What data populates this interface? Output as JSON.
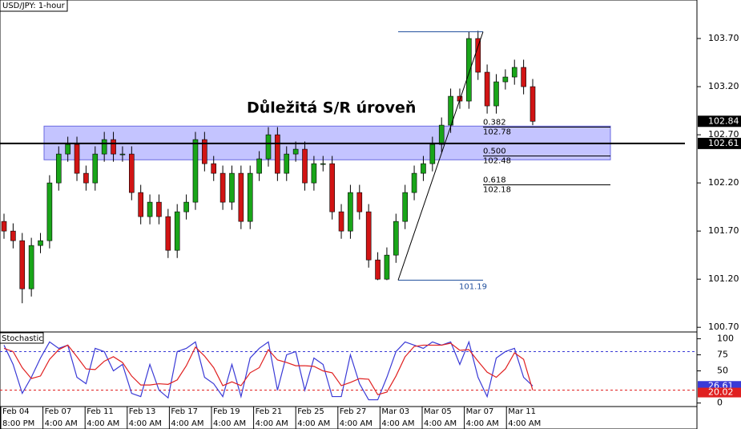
{
  "chart_data": [
    {
      "type": "candlestick",
      "title": "USD/JPY: 1-hour",
      "annotation": "Důležitá S/R úroveň",
      "up_color": "#19a519",
      "down_color": "#d11414",
      "ohlc": [
        [
          101.8,
          101.88,
          101.62,
          101.7
        ],
        [
          101.7,
          101.78,
          101.52,
          101.6
        ],
        [
          101.6,
          101.68,
          100.95,
          101.1
        ],
        [
          101.1,
          101.63,
          101.02,
          101.55
        ],
        [
          101.55,
          101.68,
          101.47,
          101.6
        ],
        [
          101.6,
          102.28,
          101.52,
          102.2
        ],
        [
          102.2,
          102.58,
          102.12,
          102.5
        ],
        [
          102.5,
          102.68,
          102.42,
          102.6
        ],
        [
          102.6,
          102.68,
          102.22,
          102.3
        ],
        [
          102.3,
          102.38,
          102.12,
          102.2
        ],
        [
          102.2,
          102.58,
          102.12,
          102.5
        ],
        [
          102.5,
          102.73,
          102.42,
          102.65
        ],
        [
          102.65,
          102.73,
          102.42,
          102.5
        ],
        [
          102.5,
          102.58,
          102.42,
          102.5
        ],
        [
          102.5,
          102.58,
          102.02,
          102.1
        ],
        [
          102.1,
          102.18,
          101.77,
          101.85
        ],
        [
          101.85,
          102.08,
          101.77,
          102.0
        ],
        [
          102.0,
          102.08,
          101.77,
          101.85
        ],
        [
          101.85,
          101.93,
          101.42,
          101.5
        ],
        [
          101.5,
          101.98,
          101.42,
          101.9
        ],
        [
          101.9,
          102.08,
          101.82,
          102.0
        ],
        [
          102.0,
          102.73,
          101.92,
          102.65
        ],
        [
          102.65,
          102.73,
          102.32,
          102.4
        ],
        [
          102.4,
          102.48,
          102.22,
          102.3
        ],
        [
          102.3,
          102.38,
          101.92,
          102.0
        ],
        [
          102.0,
          102.38,
          101.92,
          102.3
        ],
        [
          102.3,
          102.38,
          101.72,
          101.8
        ],
        [
          101.8,
          102.38,
          101.72,
          102.3
        ],
        [
          102.3,
          102.53,
          102.22,
          102.45
        ],
        [
          102.45,
          102.78,
          102.37,
          102.7
        ],
        [
          102.7,
          102.78,
          102.22,
          102.3
        ],
        [
          102.3,
          102.58,
          102.22,
          102.5
        ],
        [
          102.5,
          102.63,
          102.42,
          102.55
        ],
        [
          102.55,
          102.63,
          102.12,
          102.2
        ],
        [
          102.2,
          102.48,
          102.12,
          102.4
        ],
        [
          102.4,
          102.48,
          102.32,
          102.4
        ],
        [
          102.4,
          102.48,
          101.82,
          101.9
        ],
        [
          101.9,
          101.98,
          101.62,
          101.7
        ],
        [
          101.7,
          102.18,
          101.62,
          102.1
        ],
        [
          102.1,
          102.18,
          101.82,
          101.9
        ],
        [
          101.9,
          101.98,
          101.32,
          101.4
        ],
        [
          101.4,
          101.48,
          101.19,
          101.2
        ],
        [
          101.2,
          101.53,
          101.19,
          101.45
        ],
        [
          101.45,
          101.88,
          101.37,
          101.8
        ],
        [
          101.8,
          102.18,
          101.72,
          102.1
        ],
        [
          102.1,
          102.38,
          102.02,
          102.3
        ],
        [
          102.3,
          102.48,
          102.22,
          102.4
        ],
        [
          102.4,
          102.68,
          102.32,
          102.6
        ],
        [
          102.6,
          102.88,
          102.52,
          102.8
        ],
        [
          102.8,
          103.18,
          102.72,
          103.1
        ],
        [
          103.1,
          103.18,
          102.97,
          103.05
        ],
        [
          103.05,
          103.77,
          102.97,
          103.7
        ],
        [
          103.7,
          103.78,
          103.27,
          103.35
        ],
        [
          103.35,
          103.43,
          102.92,
          103.0
        ],
        [
          103.0,
          103.33,
          102.92,
          103.25
        ],
        [
          103.25,
          103.38,
          103.17,
          103.3
        ],
        [
          103.3,
          103.48,
          103.22,
          103.4
        ],
        [
          103.4,
          103.48,
          103.12,
          103.2
        ],
        [
          103.2,
          103.28,
          102.8,
          102.84
        ]
      ],
      "ylim": [
        100.66,
        104.1
      ],
      "yticks": [
        {
          "value": 103.7,
          "label": "103.70"
        },
        {
          "value": 103.2,
          "label": "103.20"
        },
        {
          "value": 102.7,
          "label": "102.70"
        },
        {
          "value": 102.2,
          "label": "102.20"
        },
        {
          "value": 101.7,
          "label": "101.70"
        },
        {
          "value": 101.2,
          "label": "101.20"
        },
        {
          "value": 100.7,
          "label": "100.70"
        }
      ],
      "last_price": 102.84,
      "line_price": 102.61,
      "zone": [
        102.44,
        102.79
      ],
      "zone_color": "#9c9cff",
      "fib": {
        "high": 103.77,
        "low": 101.19,
        "color": "#1f4e9c",
        "levels": [
          {
            "ratio": "0.382",
            "price": 102.78
          },
          {
            "ratio": "0.500",
            "price": 102.48
          },
          {
            "ratio": "0.618",
            "price": 102.18
          }
        ]
      },
      "x_labels": {
        "dates": [
          "Feb 04",
          "Feb 07",
          "Feb 11",
          "Feb 13",
          "Feb 17",
          "Feb 19",
          "Feb 21",
          "Feb 25",
          "Feb 27",
          "Mar 03",
          "Mar 05",
          "Mar 07",
          "Mar 11"
        ],
        "times": [
          "8:00 PM",
          "4:00 AM",
          "4:00 AM",
          "4:00 AM",
          "4:00 AM",
          "4:00 AM",
          "4:00 AM",
          "4:00 AM",
          "4:00 AM",
          "4:00 AM",
          "4:00 AM",
          "4:00 AM",
          "4:00 AM"
        ]
      }
    },
    {
      "type": "line",
      "title": "Stochastic",
      "ylim": [
        -3,
        108
      ],
      "yticks": [
        0,
        50,
        75,
        100
      ],
      "levels": [
        {
          "value": 80,
          "color": "#3a3ad6"
        },
        {
          "value": 20,
          "color": "#e02020"
        }
      ],
      "series": [
        {
          "color": "#3a3ad6",
          "values": [
            90,
            60,
            15,
            40,
            70,
            95,
            85,
            90,
            40,
            30,
            85,
            80,
            50,
            60,
            15,
            10,
            60,
            20,
            8,
            80,
            85,
            95,
            40,
            30,
            10,
            60,
            10,
            70,
            85,
            95,
            20,
            75,
            80,
            20,
            70,
            60,
            10,
            10,
            75,
            30,
            5,
            5,
            40,
            80,
            95,
            90,
            85,
            95,
            90,
            95,
            60,
            95,
            40,
            10,
            70,
            80,
            85,
            40,
            26.61
          ]
        },
        {
          "color": "#e02020",
          "values": [
            85,
            80,
            55,
            38,
            42,
            68,
            83,
            90,
            72,
            53,
            52,
            65,
            72,
            63,
            42,
            28,
            28,
            30,
            29,
            36,
            58,
            87,
            73,
            55,
            27,
            33,
            27,
            47,
            55,
            83,
            67,
            63,
            58,
            58,
            57,
            50,
            47,
            27,
            32,
            38,
            37,
            13,
            17,
            42,
            72,
            88,
            90,
            90,
            90,
            93,
            82,
            83,
            65,
            48,
            40,
            53,
            78,
            68,
            20.02
          ]
        }
      ]
    }
  ]
}
